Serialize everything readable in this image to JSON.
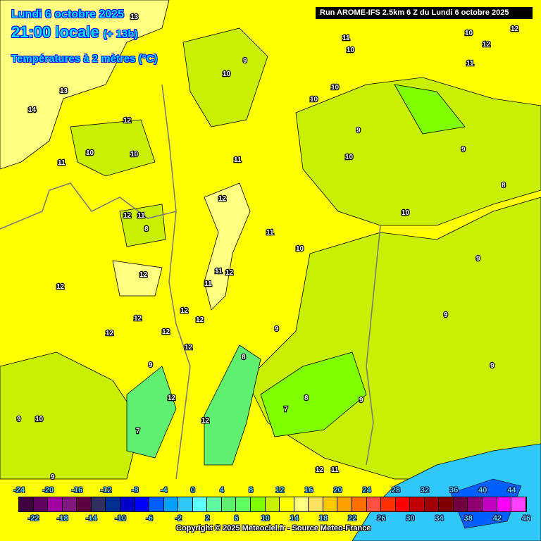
{
  "header": {
    "date": "Lundi 6 octobre 2025",
    "time": "21:00 locale",
    "offset": "(+ 13h)",
    "parameter": "Températures à 2 mètres (°C)",
    "run": "Run AROME-IFS 2.5km 6 Z du Lundi 6 octobre 2025"
  },
  "legend": {
    "top_labels": [
      "-24",
      "-20",
      "-16",
      "-12",
      "-8",
      "-4",
      "0",
      "4",
      "8",
      "12",
      "16",
      "20",
      "24",
      "28",
      "32",
      "36",
      "40",
      "44"
    ],
    "bottom_labels": [
      "-22",
      "-18",
      "-14",
      "-10",
      "-6",
      "-2",
      "2",
      "6",
      "10",
      "14",
      "18",
      "22",
      "26",
      "30",
      "34",
      "38",
      "42",
      "46"
    ],
    "colors": [
      "#400040",
      "#600060",
      "#a000a0",
      "#801880",
      "#600040",
      "#303060",
      "#003090",
      "#0000c8",
      "#0000ff",
      "#0060ff",
      "#00a0ff",
      "#30c8f8",
      "#60ffff",
      "#60f8a0",
      "#60f070",
      "#60ff60",
      "#80ff00",
      "#c8f000",
      "#ffff00",
      "#ffff80",
      "#ffe060",
      "#ffc800",
      "#ffa000",
      "#ff7000",
      "#ff5040",
      "#ff3000",
      "#ff0000",
      "#c00000",
      "#a00000",
      "#800000",
      "#700040",
      "#900070",
      "#c000c0",
      "#ff00ff",
      "#ff40ff",
      "#ff80ff"
    ]
  },
  "copyright": "Copyright © 2025 Meteociel.fr - Source Meteo-France",
  "map": {
    "colors": {
      "warm": "#ffff80",
      "base": "#ffff00",
      "cool": "#c8f000",
      "cooler": "#80ff00",
      "cold": "#60f070",
      "alpine": "#30c8f8"
    },
    "contour_labels": [
      "13",
      "14",
      "13",
      "12",
      "10",
      "10",
      "11",
      "12",
      "11",
      "10",
      "12",
      "12",
      "12",
      "12",
      "12",
      "12",
      "9",
      "10",
      "9",
      "10",
      "11",
      "12",
      "11",
      "12",
      "11",
      "10",
      "10",
      "9",
      "10",
      "10",
      "11",
      "9",
      "10",
      "12",
      "12",
      "11",
      "8",
      "9",
      "9",
      "9",
      "8",
      "7",
      "8",
      "12",
      "12",
      "9",
      "9",
      "10",
      "7",
      "8",
      "9",
      "9",
      "11",
      "12",
      "11",
      "12",
      "12"
    ]
  }
}
